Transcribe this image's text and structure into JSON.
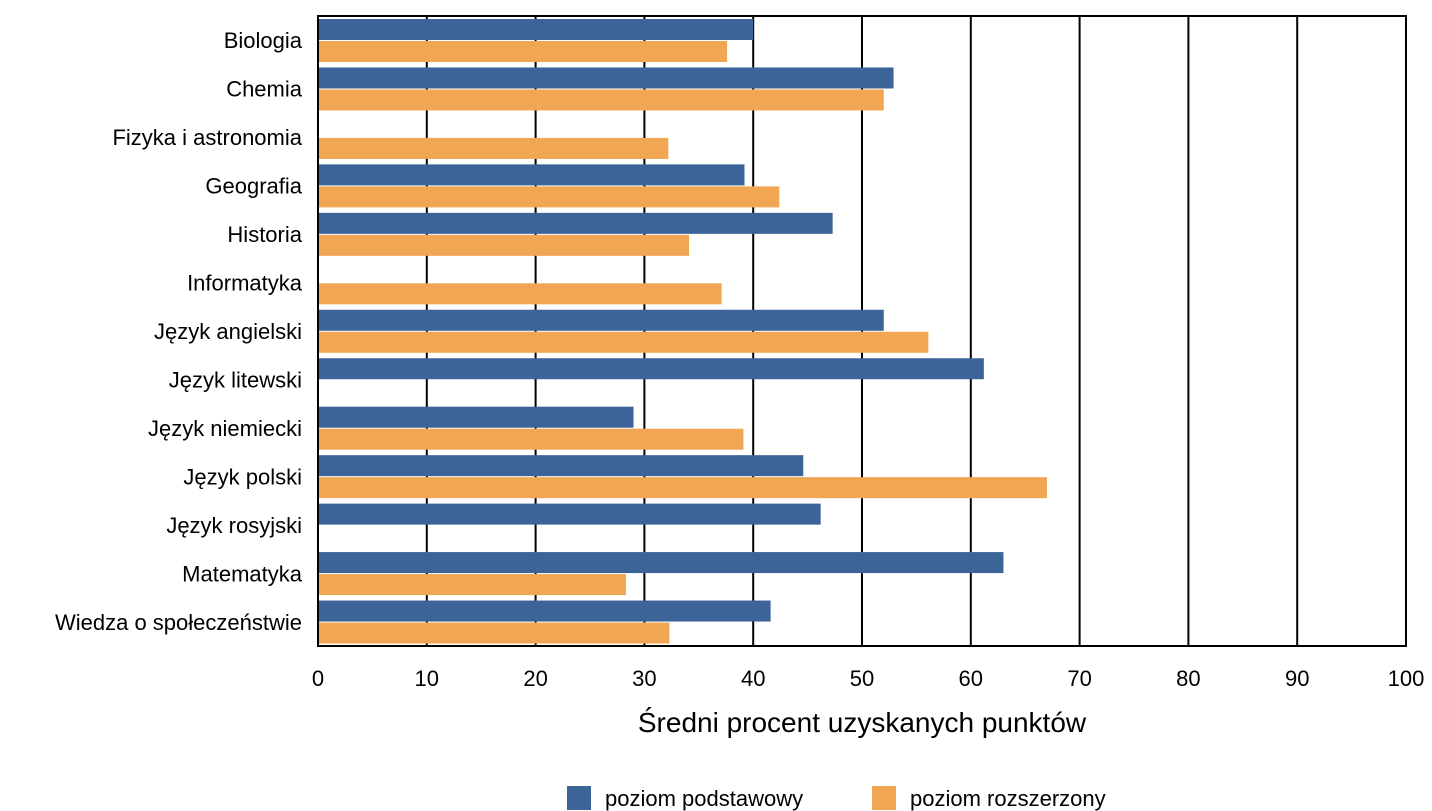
{
  "chart_data": {
    "type": "bar",
    "orientation": "horizontal",
    "categories": [
      "Biologia",
      "Chemia",
      "Fizyka i astronomia",
      "Geografia",
      "Historia",
      "Informatyka",
      "Język angielski",
      "Język litewski",
      "Język niemiecki",
      "Język polski",
      "Język rosyjski",
      "Matematyka",
      "Wiedza o społeczeństwie"
    ],
    "series": [
      {
        "name": "poziom podstawowy",
        "color": "#3c6499",
        "values": [
          40.0,
          52.9,
          null,
          39.2,
          47.3,
          null,
          52.0,
          61.2,
          29.0,
          44.6,
          46.2,
          63.0,
          41.6
        ]
      },
      {
        "name": "poziom rozszerzony",
        "color": "#f0a652",
        "values": [
          37.6,
          52.0,
          32.2,
          42.4,
          34.1,
          37.1,
          56.1,
          null,
          39.1,
          67.0,
          null,
          28.3,
          32.3
        ]
      }
    ],
    "xlabel": "Średni procent uzyskanych punktów",
    "ylabel": "",
    "title": "",
    "xlim": [
      0,
      100
    ],
    "xticks": [
      "0",
      "10",
      "20",
      "30",
      "40",
      "50",
      "60",
      "70",
      "80",
      "90",
      "100"
    ],
    "grid": "vertical",
    "legend_position": "bottom"
  }
}
